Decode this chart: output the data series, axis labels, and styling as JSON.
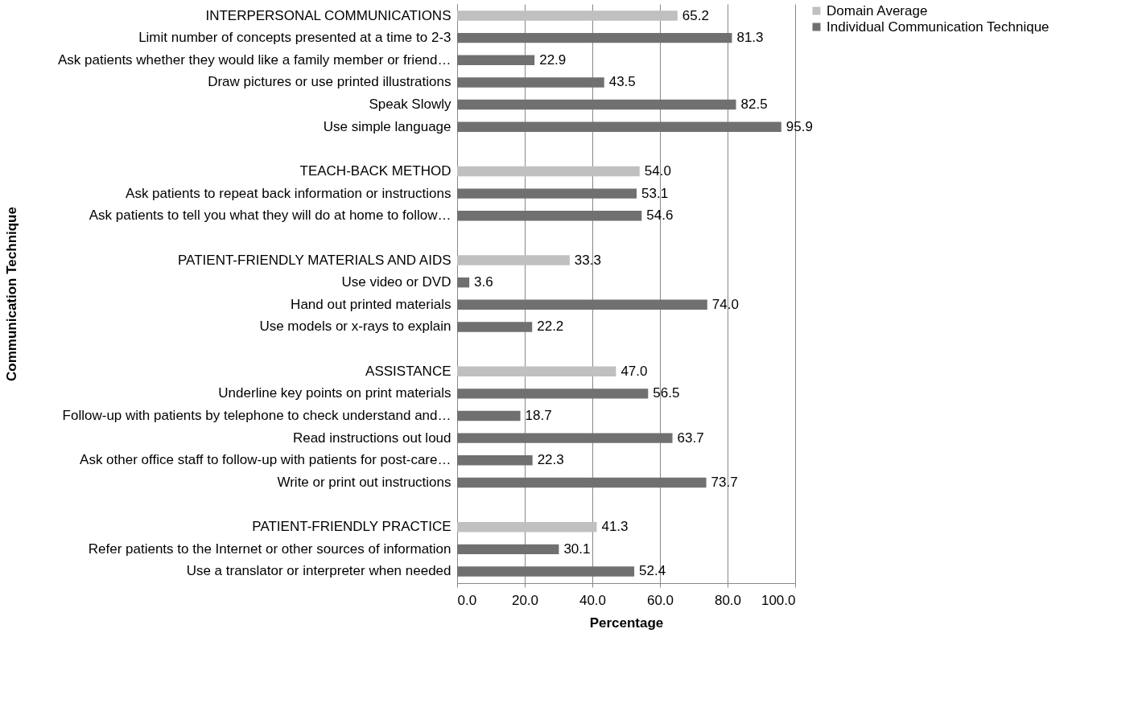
{
  "chart_data": {
    "type": "bar",
    "orientation": "horizontal",
    "xlabel": "Percentage",
    "ylabel": "Communication Technique",
    "categories": [
      "INTERPERSONAL COMMUNICATIONS",
      "Limit number of concepts presented at a time to 2-3",
      "Ask patients whether they would like a family member or friend…",
      "Draw pictures or use printed illustrations",
      "Speak Slowly",
      "Use simple language",
      null,
      "TEACH-BACK METHOD",
      "Ask patients to repeat back information or instructions",
      "Ask patients to tell you what they will do at home to follow…",
      null,
      "PATIENT-FRIENDLY MATERIALS AND AIDS",
      "Use video or DVD",
      "Hand out printed materials",
      "Use models or x-rays to explain",
      null,
      "ASSISTANCE",
      "Underline key points on print materials",
      "Follow-up with patients by telephone to check understand and…",
      "Read instructions out loud",
      "Ask other office staff to follow-up with patients for post-care…",
      "Write or print out instructions",
      null,
      "PATIENT-FRIENDLY PRACTICE",
      "Refer patients to the Internet or other sources of information",
      "Use a translator or interpreter when needed"
    ],
    "series": [
      {
        "name": "Domain Average",
        "color": "#c0c0c0",
        "values": [
          65.2,
          null,
          null,
          null,
          null,
          null,
          null,
          54.0,
          null,
          null,
          null,
          33.3,
          null,
          null,
          null,
          null,
          47.0,
          null,
          null,
          null,
          null,
          null,
          null,
          41.3,
          null,
          null
        ],
        "value_labels": [
          "65.2",
          null,
          null,
          null,
          null,
          null,
          null,
          "54.0",
          null,
          null,
          null,
          "33.3",
          null,
          null,
          null,
          null,
          "47.0",
          null,
          null,
          null,
          null,
          null,
          null,
          "41.3",
          null,
          null
        ]
      },
      {
        "name": "Individual Communication Technique",
        "color": "#707070",
        "values": [
          null,
          81.3,
          22.9,
          43.5,
          82.5,
          95.9,
          null,
          null,
          53.1,
          54.6,
          null,
          null,
          3.6,
          74.0,
          22.2,
          null,
          null,
          56.5,
          18.7,
          63.7,
          22.3,
          73.7,
          null,
          null,
          30.1,
          52.4
        ],
        "value_labels": [
          null,
          "81.3",
          "22.9",
          "43.5",
          "82.5",
          "95.9",
          null,
          null,
          "53.1",
          "54.6",
          null,
          null,
          "3.6",
          "74.0",
          "22.2",
          null,
          null,
          "56.5",
          "18.7",
          "63.7",
          "22.3",
          "73.7",
          null,
          null,
          "30.1",
          "52.4"
        ]
      }
    ],
    "xlim": [
      0,
      100
    ],
    "xticks": [
      {
        "value": 0,
        "label": "0.0"
      },
      {
        "value": 20,
        "label": "20.0"
      },
      {
        "value": 40,
        "label": "40.0"
      },
      {
        "value": 60,
        "label": "60.0"
      },
      {
        "value": 80,
        "label": "80.0"
      },
      {
        "value": 100,
        "label": "100.0"
      }
    ],
    "grid": "x",
    "legend": "right"
  }
}
